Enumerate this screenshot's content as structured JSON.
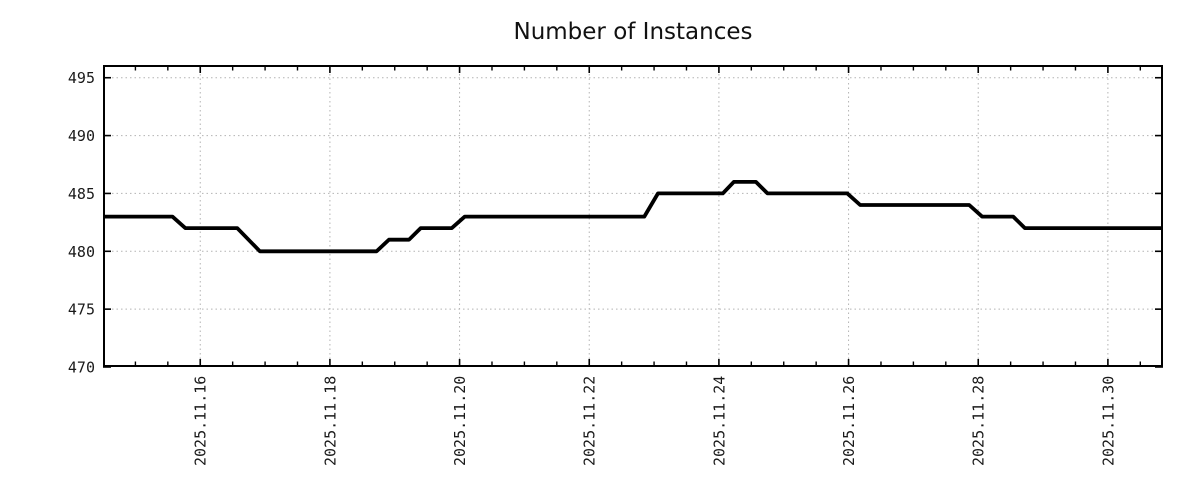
{
  "title": "Number of Instances",
  "colors": {
    "line": "#000000",
    "grid": "#b3b3b3",
    "axis": "#000000",
    "text": "#1a1a1a",
    "background": "#ffffff"
  },
  "chart_data": {
    "type": "line",
    "title": "Number of Instances",
    "xlabel": "",
    "ylabel": "",
    "legend_position": "none",
    "grid": true,
    "x_unit": "date, decimal day of 2025-11",
    "x_range": [
      14.5,
      30.85
    ],
    "ylim": [
      470,
      496.1
    ],
    "y_ticks": [
      470,
      475,
      480,
      485,
      490,
      495
    ],
    "x_major_ticks": [
      {
        "value": 16,
        "label": "2025.11.16"
      },
      {
        "value": 18,
        "label": "2025.11.18"
      },
      {
        "value": 20,
        "label": "2025.11.20"
      },
      {
        "value": 22,
        "label": "2025.11.22"
      },
      {
        "value": 24,
        "label": "2025.11.24"
      },
      {
        "value": 26,
        "label": "2025.11.26"
      },
      {
        "value": 28,
        "label": "2025.11.28"
      },
      {
        "value": 30,
        "label": "2025.11.30"
      }
    ],
    "x_minor_tick_step": 0.5,
    "series": [
      {
        "name": "Number of Instances",
        "color": "#000000",
        "style": "step-line",
        "points": [
          [
            14.5,
            483
          ],
          [
            15.57,
            483
          ],
          [
            15.77,
            482
          ],
          [
            16.57,
            482
          ],
          [
            16.92,
            480
          ],
          [
            18.72,
            480
          ],
          [
            18.91,
            481
          ],
          [
            19.22,
            481
          ],
          [
            19.4,
            482
          ],
          [
            19.88,
            482
          ],
          [
            20.08,
            483
          ],
          [
            22.85,
            483
          ],
          [
            23.06,
            485
          ],
          [
            24.06,
            485
          ],
          [
            24.23,
            486
          ],
          [
            24.57,
            486
          ],
          [
            24.75,
            485
          ],
          [
            25.98,
            485
          ],
          [
            26.18,
            484
          ],
          [
            27.86,
            484
          ],
          [
            28.06,
            483
          ],
          [
            28.54,
            483
          ],
          [
            28.72,
            482
          ],
          [
            30.85,
            482
          ]
        ]
      }
    ]
  }
}
